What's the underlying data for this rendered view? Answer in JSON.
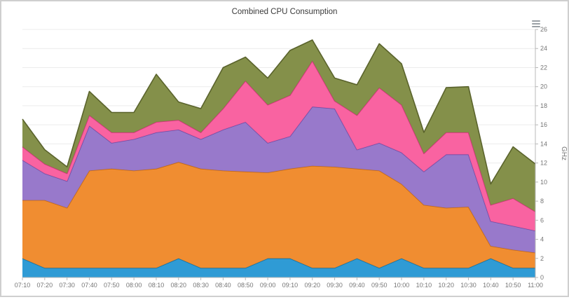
{
  "header": {
    "title": "Combined CPU Consumption"
  },
  "toolbar": {
    "menu_icon": "hamburger-menu"
  },
  "chart_data": {
    "type": "area",
    "stacked": true,
    "title": "Combined CPU Consumption",
    "xlabel": "",
    "ylabel": "GHz",
    "ylim": [
      0,
      26
    ],
    "ytick_step": 2,
    "yticks": [
      0,
      2,
      4,
      6,
      8,
      10,
      12,
      14,
      16,
      18,
      20,
      22,
      24,
      26
    ],
    "grid": true,
    "legend_position": "none",
    "categories": [
      "07:10",
      "07:20",
      "07:30",
      "07:40",
      "07:50",
      "08:00",
      "08:10",
      "08:20",
      "08:30",
      "08:40",
      "08:50",
      "09:00",
      "09:10",
      "09:20",
      "09:30",
      "09:40",
      "09:50",
      "10:00",
      "10:10",
      "10:20",
      "10:30",
      "10:40",
      "10:50",
      "11:00"
    ],
    "series": [
      {
        "name": "blue",
        "color": "#2697d3",
        "border": "#1371a3",
        "values": [
          2,
          1,
          1,
          1,
          1,
          1,
          1,
          2,
          1,
          1,
          1,
          2,
          2,
          1,
          1,
          2,
          1,
          2,
          1,
          1,
          1,
          2,
          1,
          1
        ]
      },
      {
        "name": "orange",
        "color": "#ef8829",
        "border": "#c56a12",
        "values": [
          6.1,
          7.1,
          6.3,
          10.2,
          10.4,
          10.2,
          10.4,
          10.1,
          10.4,
          10.2,
          10.1,
          9.0,
          9.4,
          10.7,
          10.6,
          9.4,
          10.2,
          7.8,
          6.6,
          6.3,
          6.4,
          1.3,
          1.9,
          1.6
        ]
      },
      {
        "name": "purple",
        "color": "#9474c9",
        "border": "#6e4fa6",
        "values": [
          4.2,
          2.8,
          2.8,
          4.7,
          2.7,
          3.3,
          3.8,
          3.4,
          3.1,
          4.3,
          5.2,
          3.1,
          3.4,
          6.2,
          6.1,
          2.0,
          2.9,
          3.3,
          3.5,
          5.6,
          5.5,
          2.6,
          2.5,
          2.3
        ]
      },
      {
        "name": "pink",
        "color": "#f95d9d",
        "border": "#cf3379",
        "values": [
          1.4,
          1.0,
          0.8,
          1.1,
          1.1,
          0.7,
          1.1,
          1.0,
          0.7,
          2.2,
          4.3,
          4.0,
          4.3,
          4.8,
          0.8,
          3.6,
          5.8,
          5.0,
          1.9,
          2.3,
          2.3,
          1.7,
          2.9,
          2.0
        ]
      },
      {
        "name": "olive",
        "color": "#7f8b43",
        "border": "#5a632c",
        "values": [
          2.9,
          1.5,
          0.7,
          2.5,
          2.1,
          2.1,
          5.0,
          1.9,
          2.5,
          4.3,
          2.5,
          2.8,
          4.7,
          2.2,
          2.4,
          3.2,
          4.6,
          4.3,
          2.2,
          4.7,
          4.8,
          2.2,
          5.4,
          5.0
        ]
      }
    ]
  }
}
